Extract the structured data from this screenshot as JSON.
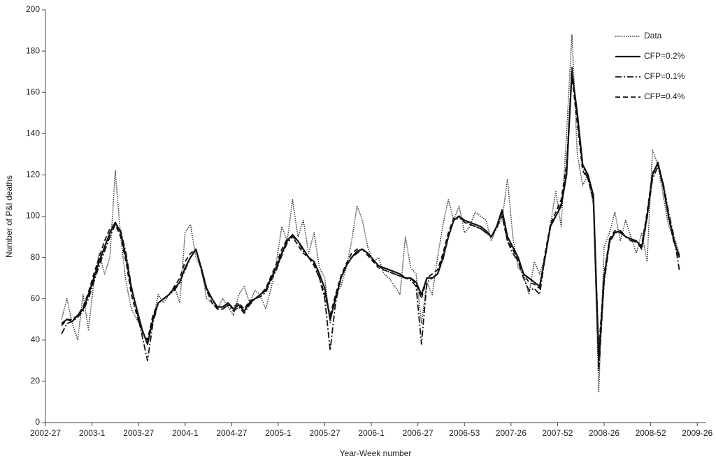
{
  "chart_data": {
    "type": "line",
    "y_label": "Number of P&I deaths",
    "x_label": "Year-Week number",
    "xlim": [
      0,
      369
    ],
    "xticks": [
      {
        "value": 0,
        "label": "2002-27"
      },
      {
        "value": 26,
        "label": "2003-1"
      },
      {
        "value": 52,
        "label": "2003-27"
      },
      {
        "value": 78,
        "label": "2004-1"
      },
      {
        "value": 104,
        "label": "2004-27"
      },
      {
        "value": 130,
        "label": "2005-1"
      },
      {
        "value": 156,
        "label": "2005-27"
      },
      {
        "value": 182,
        "label": "2006-1"
      },
      {
        "value": 208,
        "label": "2006-27"
      },
      {
        "value": 234,
        "label": "2006-53"
      },
      {
        "value": 260,
        "label": "2007-26"
      },
      {
        "value": 286,
        "label": "2007-52"
      },
      {
        "value": 312,
        "label": "2008-26"
      },
      {
        "value": 338,
        "label": "2008-52"
      },
      {
        "value": 364,
        "label": "2009-26"
      }
    ],
    "ylim": [
      0,
      200
    ],
    "yticks": [
      0,
      20,
      40,
      60,
      80,
      100,
      120,
      140,
      160,
      180,
      200
    ],
    "legend": "top-right",
    "x": [
      9,
      12,
      15,
      18,
      21,
      24,
      27,
      30,
      33,
      36,
      39,
      42,
      45,
      48,
      51,
      54,
      57,
      60,
      63,
      66,
      69,
      72,
      75,
      78,
      81,
      84,
      87,
      90,
      93,
      96,
      99,
      102,
      105,
      108,
      111,
      114,
      117,
      120,
      123,
      126,
      129,
      132,
      135,
      138,
      141,
      144,
      147,
      150,
      153,
      156,
      159,
      162,
      165,
      168,
      171,
      174,
      177,
      180,
      183,
      186,
      189,
      192,
      195,
      198,
      201,
      204,
      207,
      210,
      213,
      216,
      219,
      222,
      225,
      228,
      231,
      234,
      237,
      240,
      243,
      246,
      249,
      252,
      255,
      258,
      261,
      264,
      267,
      270,
      273,
      276,
      279,
      282,
      285,
      288,
      291,
      294,
      297,
      300,
      303,
      306,
      309,
      312,
      315,
      318,
      321,
      324,
      327,
      330,
      333,
      336,
      339,
      342,
      345,
      348,
      351,
      354
    ],
    "series": [
      {
        "name": "Data",
        "color": "#333333",
        "style": "dotted",
        "values": [
          50,
          60,
          48,
          40,
          62,
          45,
          68,
          82,
          72,
          80,
          122,
          90,
          68,
          55,
          50,
          45,
          38,
          50,
          62,
          58,
          62,
          66,
          58,
          92,
          96,
          80,
          75,
          60,
          58,
          55,
          60,
          56,
          52,
          62,
          66,
          58,
          64,
          62,
          55,
          65,
          78,
          95,
          88,
          108,
          90,
          98,
          82,
          92,
          75,
          70,
          48,
          62,
          66,
          75,
          88,
          105,
          98,
          85,
          78,
          80,
          72,
          70,
          66,
          62,
          90,
          75,
          72,
          48,
          68,
          62,
          80,
          96,
          108,
          98,
          105,
          92,
          95,
          102,
          100,
          98,
          88,
          95,
          98,
          118,
          90,
          75,
          72,
          62,
          78,
          72,
          80,
          96,
          112,
          95,
          140,
          188,
          130,
          115,
          120,
          105,
          15,
          85,
          92,
          102,
          88,
          98,
          90,
          82,
          92,
          78,
          132,
          125,
          110,
          95,
          90,
          82
        ]
      },
      {
        "name": "CFP=0.2%",
        "color": "#111111",
        "style": "solid",
        "values": [
          48,
          50,
          49,
          52,
          55,
          62,
          70,
          78,
          85,
          92,
          97,
          92,
          80,
          65,
          55,
          45,
          38,
          50,
          58,
          60,
          62,
          65,
          68,
          75,
          80,
          84,
          75,
          65,
          60,
          56,
          56,
          58,
          55,
          57,
          54,
          58,
          60,
          62,
          64,
          70,
          75,
          82,
          88,
          91,
          88,
          84,
          80,
          78,
          72,
          65,
          50,
          60,
          70,
          76,
          80,
          83,
          84,
          82,
          79,
          76,
          75,
          74,
          73,
          72,
          70,
          70,
          68,
          62,
          70,
          70,
          72,
          80,
          90,
          98,
          100,
          98,
          97,
          96,
          95,
          93,
          90,
          95,
          103,
          90,
          85,
          80,
          72,
          70,
          68,
          66,
          80,
          95,
          100,
          105,
          120,
          170,
          150,
          125,
          120,
          110,
          30,
          70,
          88,
          92,
          93,
          90,
          89,
          88,
          85,
          100,
          120,
          126,
          115,
          100,
          88,
          80
        ]
      },
      {
        "name": "CFP=0.1%",
        "color": "#111111",
        "style": "dashdot",
        "values": [
          43,
          48,
          49,
          51,
          54,
          60,
          68,
          76,
          83,
          90,
          96,
          93,
          82,
          66,
          54,
          42,
          30,
          48,
          58,
          60,
          62,
          64,
          68,
          74,
          80,
          84,
          74,
          64,
          60,
          55,
          55,
          57,
          54,
          56,
          53,
          57,
          60,
          61,
          63,
          69,
          74,
          81,
          87,
          90,
          88,
          83,
          80,
          77,
          70,
          60,
          35,
          58,
          70,
          76,
          80,
          82,
          84,
          82,
          79,
          76,
          74,
          73,
          72,
          71,
          70,
          69,
          66,
          38,
          68,
          70,
          72,
          79,
          90,
          98,
          99,
          98,
          96,
          95,
          94,
          92,
          90,
          94,
          102,
          88,
          82,
          78,
          70,
          64,
          65,
          62,
          80,
          96,
          100,
          106,
          122,
          172,
          148,
          124,
          118,
          108,
          25,
          68,
          87,
          92,
          92,
          90,
          88,
          88,
          84,
          99,
          118,
          124,
          116,
          102,
          90,
          74
        ]
      },
      {
        "name": "CFP=0.4%",
        "color": "#111111",
        "style": "dashed",
        "values": [
          47,
          50,
          50,
          52,
          56,
          63,
          72,
          80,
          88,
          94,
          96,
          90,
          78,
          62,
          52,
          44,
          40,
          52,
          58,
          60,
          62,
          66,
          70,
          78,
          82,
          84,
          74,
          64,
          58,
          55,
          55,
          57,
          56,
          58,
          55,
          59,
          60,
          62,
          65,
          71,
          77,
          84,
          89,
          90,
          86,
          82,
          80,
          76,
          70,
          62,
          52,
          62,
          71,
          77,
          82,
          84,
          84,
          81,
          78,
          75,
          74,
          73,
          72,
          71,
          70,
          70,
          67,
          60,
          70,
          72,
          74,
          82,
          92,
          99,
          100,
          97,
          96,
          95,
          94,
          92,
          90,
          95,
          100,
          88,
          84,
          78,
          72,
          68,
          67,
          65,
          82,
          96,
          102,
          108,
          125,
          168,
          145,
          122,
          118,
          108,
          35,
          72,
          89,
          93,
          92,
          90,
          89,
          87,
          86,
          102,
          121,
          125,
          114,
          99,
          87,
          81
        ]
      }
    ]
  }
}
